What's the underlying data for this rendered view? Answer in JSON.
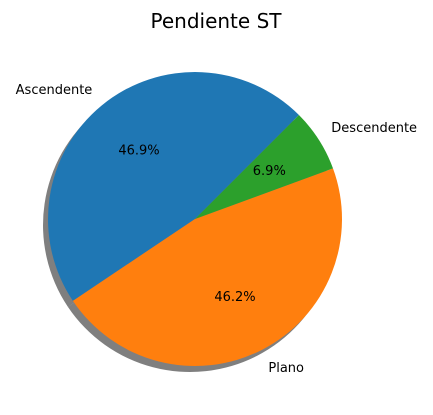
{
  "chart_data": {
    "type": "pie",
    "title": "Pendiente ST",
    "labels": [
      "Ascendente",
      "Plano",
      "Descendente"
    ],
    "values": [
      46.9,
      46.2,
      6.9
    ],
    "percent_labels": [
      "46.9%",
      "46.2%",
      "6.9%"
    ],
    "colors": [
      "#1f77b4",
      "#ff7f0e",
      "#2ca02c"
    ],
    "start_angle_deg": 45,
    "direction": "counterclockwise",
    "shadow": true,
    "legend": "none"
  }
}
